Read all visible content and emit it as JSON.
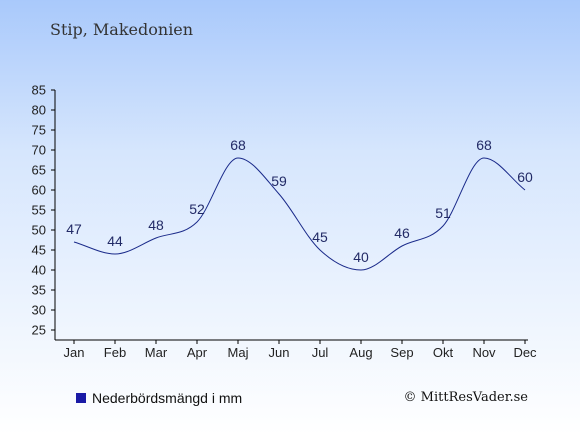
{
  "header": {
    "title": "Stip, Makedonien"
  },
  "legend": {
    "label": "Nederbördsmängd i mm"
  },
  "footer": {
    "copyright": "© MittResVader.se"
  },
  "colors": {
    "line": "#1a2a8a",
    "swatch": "#1a1aa6",
    "axis": "#000000"
  },
  "chart_data": {
    "type": "line",
    "categories": [
      "Jan",
      "Feb",
      "Mar",
      "Apr",
      "Maj",
      "Jun",
      "Jul",
      "Aug",
      "Sep",
      "Okt",
      "Nov",
      "Dec"
    ],
    "series": [
      {
        "name": "Nederbördsmängd i mm",
        "values": [
          47,
          44,
          48,
          52,
          68,
          59,
          45,
          40,
          46,
          51,
          68,
          60
        ]
      }
    ],
    "ylim": [
      25,
      85
    ],
    "yticks": [
      25,
      30,
      35,
      40,
      45,
      50,
      55,
      60,
      65,
      70,
      75,
      80,
      85
    ],
    "grid": false,
    "legend_position": "bottom-left"
  }
}
